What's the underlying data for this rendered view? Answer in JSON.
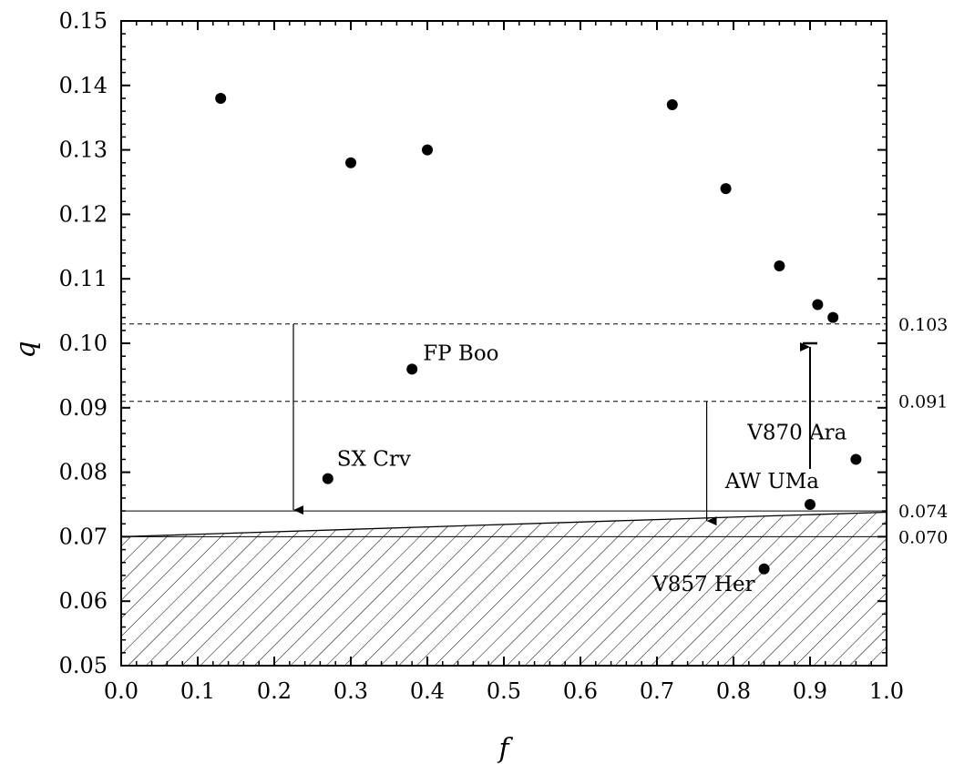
{
  "chart_data": {
    "type": "scatter",
    "xlabel": "f",
    "ylabel": "q",
    "xlim": [
      0.0,
      1.0
    ],
    "ylim": [
      0.05,
      0.15
    ],
    "xticks": [
      "0.0",
      "0.1",
      "0.2",
      "0.3",
      "0.4",
      "0.5",
      "0.6",
      "0.7",
      "0.8",
      "0.9",
      "1.0"
    ],
    "yticks": [
      "0.05",
      "0.06",
      "0.07",
      "0.08",
      "0.09",
      "0.10",
      "0.11",
      "0.12",
      "0.13",
      "0.14",
      "0.15"
    ],
    "grid": false,
    "points": [
      {
        "x": 0.13,
        "y": 0.138
      },
      {
        "x": 0.27,
        "y": 0.079,
        "label": "SX Crv"
      },
      {
        "x": 0.3,
        "y": 0.128
      },
      {
        "x": 0.38,
        "y": 0.096,
        "label": "FP Boo"
      },
      {
        "x": 0.4,
        "y": 0.13
      },
      {
        "x": 0.72,
        "y": 0.137
      },
      {
        "x": 0.79,
        "y": 0.124
      },
      {
        "x": 0.84,
        "y": 0.065,
        "label": "V857 Her"
      },
      {
        "x": 0.86,
        "y": 0.112
      },
      {
        "x": 0.9,
        "y": 0.075,
        "label": "AW UMa"
      },
      {
        "x": 0.91,
        "y": 0.106
      },
      {
        "x": 0.93,
        "y": 0.104
      },
      {
        "x": 0.96,
        "y": 0.082,
        "label": "V870 Ara"
      }
    ],
    "reference_lines": [
      {
        "y": 0.103,
        "label": "0.103",
        "style": "dashed"
      },
      {
        "y": 0.091,
        "label": "0.091",
        "style": "dashed"
      },
      {
        "y": 0.074,
        "label": "0.074",
        "style": "solid"
      },
      {
        "y": 0.07,
        "label": "0.070",
        "style": "solid"
      }
    ],
    "boundary_line": {
      "x": [
        0.0,
        1.0
      ],
      "y": [
        0.07,
        0.0738
      ]
    },
    "hatched_region": "below boundary line",
    "arrows": [
      {
        "x": 0.225,
        "from": 0.103,
        "to": 0.074
      },
      {
        "x": 0.765,
        "from": 0.091,
        "to": 0.0723
      }
    ],
    "upper_limit_bar": {
      "x": 0.9,
      "from": 0.0805,
      "to": 0.1
    }
  }
}
